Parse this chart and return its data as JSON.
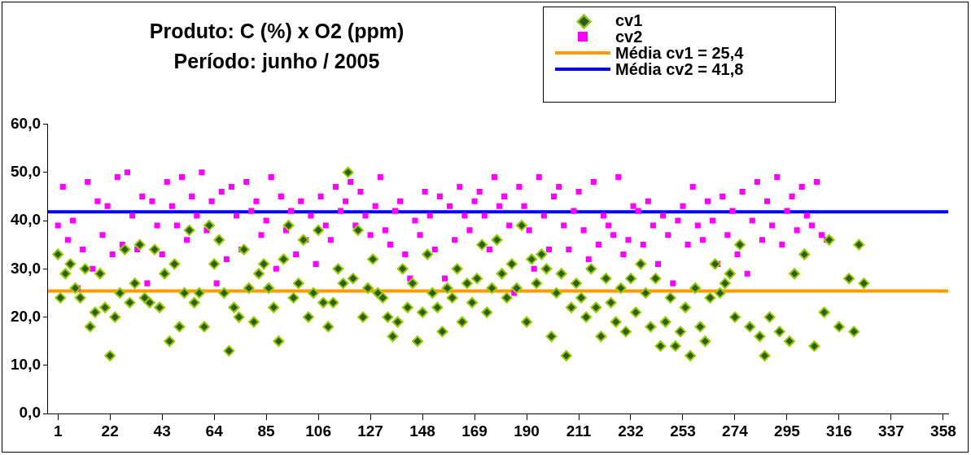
{
  "chart_data": {
    "type": "scatter",
    "title": "Produto: C (%) x O2 (ppm)",
    "subtitle": "Período: junho / 2005",
    "legend": "top right",
    "grid": false,
    "xlim": [
      -3,
      360
    ],
    "xticks": [
      1,
      22,
      43,
      64,
      85,
      106,
      127,
      148,
      169,
      190,
      211,
      232,
      253,
      274,
      295,
      316,
      337,
      358
    ],
    "ylim": [
      0,
      60
    ],
    "yticks": [
      {
        "value": 0,
        "label": "0,0"
      },
      {
        "value": 10,
        "label": "10,0"
      },
      {
        "value": 20,
        "label": "20,0"
      },
      {
        "value": 30,
        "label": "30,0"
      },
      {
        "value": 40,
        "label": "40,0"
      },
      {
        "value": 50,
        "label": "50,0"
      },
      {
        "value": 60,
        "label": "60,0"
      }
    ],
    "series": [
      {
        "name": "cv1",
        "marker": "diamond",
        "color": "#2e5e1e",
        "x": [
          1,
          2,
          4,
          6,
          8,
          10,
          12,
          14,
          16,
          18,
          20,
          22,
          24,
          26,
          28,
          30,
          32,
          34,
          36,
          38,
          40,
          42,
          44,
          46,
          48,
          50,
          52,
          54,
          56,
          58,
          60,
          62,
          64,
          66,
          68,
          70,
          72,
          74,
          76,
          78,
          80,
          82,
          84,
          86,
          88,
          90,
          92,
          94,
          96,
          98,
          100,
          102,
          104,
          106,
          108,
          110,
          112,
          114,
          116,
          118,
          120,
          122,
          124,
          126,
          128,
          130,
          132,
          134,
          136,
          138,
          140,
          142,
          144,
          146,
          148,
          150,
          152,
          154,
          156,
          158,
          160,
          162,
          164,
          166,
          168,
          170,
          172,
          174,
          176,
          178,
          180,
          182,
          184,
          186,
          188,
          190,
          192,
          194,
          196,
          198,
          200,
          202,
          204,
          206,
          208,
          210,
          212,
          214,
          216,
          218,
          220,
          222,
          224,
          226,
          228,
          230,
          232,
          234,
          236,
          238,
          240,
          242,
          244,
          246,
          248,
          250,
          252,
          254,
          256,
          258,
          260,
          262,
          264,
          266,
          268,
          270,
          272,
          274,
          276,
          280,
          284,
          286,
          288,
          292,
          296,
          298,
          302,
          306,
          310,
          312,
          316,
          320,
          322,
          324,
          326
        ],
        "values": [
          33,
          24,
          29,
          31,
          26,
          24,
          30,
          18,
          21,
          29,
          22,
          12,
          20,
          25,
          34,
          23,
          27,
          35,
          24,
          23,
          34,
          22,
          29,
          15,
          31,
          18,
          25,
          38,
          23,
          25,
          18,
          39,
          31,
          36,
          25,
          13,
          22,
          20,
          34,
          26,
          19,
          29,
          31,
          26,
          22,
          15,
          32,
          39,
          24,
          27,
          36,
          20,
          25,
          38,
          23,
          18,
          23,
          30,
          27,
          50,
          28,
          38,
          20,
          26,
          32,
          25,
          24,
          20,
          16,
          19,
          30,
          22,
          27,
          15,
          21,
          33,
          25,
          22,
          17,
          26,
          24,
          30,
          19,
          27,
          23,
          28,
          35,
          21,
          26,
          36,
          29,
          24,
          31,
          26,
          39,
          19,
          32,
          27,
          33,
          30,
          16,
          25,
          29,
          12,
          22,
          27,
          24,
          20,
          30,
          22,
          16,
          28,
          23,
          19,
          26,
          17,
          28,
          21,
          31,
          25,
          18,
          28,
          14,
          19,
          24,
          14,
          17,
          22,
          12,
          26,
          18,
          15,
          24,
          31,
          25,
          27,
          29,
          20,
          35,
          18,
          16,
          12,
          20,
          17,
          15,
          29,
          33,
          14,
          21,
          36,
          18,
          28,
          17,
          35,
          27
        ]
      },
      {
        "name": "cv2",
        "marker": "square",
        "color": "#ff00ff",
        "x": [
          1,
          3,
          5,
          7,
          9,
          11,
          13,
          15,
          17,
          19,
          21,
          23,
          25,
          27,
          29,
          31,
          33,
          35,
          37,
          39,
          41,
          43,
          45,
          47,
          49,
          51,
          53,
          55,
          57,
          59,
          61,
          63,
          65,
          67,
          69,
          71,
          73,
          75,
          77,
          79,
          81,
          83,
          85,
          87,
          89,
          91,
          93,
          95,
          97,
          99,
          101,
          103,
          105,
          107,
          109,
          111,
          113,
          115,
          117,
          119,
          121,
          123,
          125,
          127,
          129,
          131,
          133,
          135,
          137,
          139,
          141,
          143,
          145,
          147,
          149,
          151,
          153,
          155,
          157,
          159,
          161,
          163,
          165,
          167,
          169,
          171,
          173,
          175,
          177,
          179,
          181,
          183,
          185,
          187,
          189,
          191,
          193,
          195,
          197,
          199,
          201,
          203,
          205,
          207,
          209,
          211,
          213,
          215,
          217,
          219,
          221,
          223,
          225,
          227,
          229,
          231,
          233,
          235,
          237,
          239,
          241,
          243,
          245,
          247,
          249,
          251,
          253,
          255,
          257,
          259,
          261,
          263,
          265,
          267,
          269,
          271,
          273,
          275,
          277,
          279,
          281,
          283,
          285,
          287,
          289,
          291,
          293,
          295,
          297,
          299,
          301,
          303,
          305,
          307,
          309,
          311
        ],
        "values": [
          39,
          47,
          36,
          40,
          26,
          34,
          48,
          30,
          44,
          37,
          43,
          33,
          49,
          35,
          50,
          41,
          34,
          45,
          27,
          44,
          39,
          33,
          48,
          43,
          39,
          49,
          36,
          45,
          41,
          50,
          38,
          44,
          27,
          46,
          32,
          47,
          41,
          34,
          48,
          42,
          44,
          37,
          40,
          49,
          30,
          45,
          38,
          42,
          33,
          44,
          36,
          41,
          31,
          45,
          39,
          36,
          47,
          42,
          44,
          48,
          39,
          46,
          41,
          37,
          43,
          49,
          38,
          35,
          42,
          44,
          33,
          28,
          40,
          37,
          46,
          41,
          34,
          45,
          28,
          43,
          36,
          47,
          41,
          38,
          44,
          46,
          41,
          34,
          49,
          43,
          45,
          39,
          25,
          47,
          43,
          38,
          30,
          49,
          41,
          34,
          45,
          47,
          39,
          34,
          42,
          46,
          38,
          32,
          48,
          35,
          41,
          39,
          37,
          49,
          33,
          36,
          43,
          42,
          35,
          44,
          39,
          31,
          41,
          37,
          27,
          40,
          43,
          35,
          47,
          39,
          36,
          44,
          40,
          31,
          45,
          37,
          42,
          33,
          46,
          29,
          40,
          48,
          36,
          44,
          39,
          49,
          35,
          42,
          45,
          38,
          47,
          41,
          39,
          48,
          37,
          36
        ]
      },
      {
        "name": "Média cv1 = 25,4",
        "type": "line",
        "marker": "none",
        "color": "#ff9900",
        "x": [
          -3,
          360
        ],
        "values": [
          25.4,
          25.4
        ]
      },
      {
        "name": "Média cv2 = 41,8",
        "type": "line",
        "marker": "none",
        "color": "#0000ff",
        "x": [
          -3,
          360
        ],
        "values": [
          41.8,
          41.8
        ]
      }
    ]
  }
}
